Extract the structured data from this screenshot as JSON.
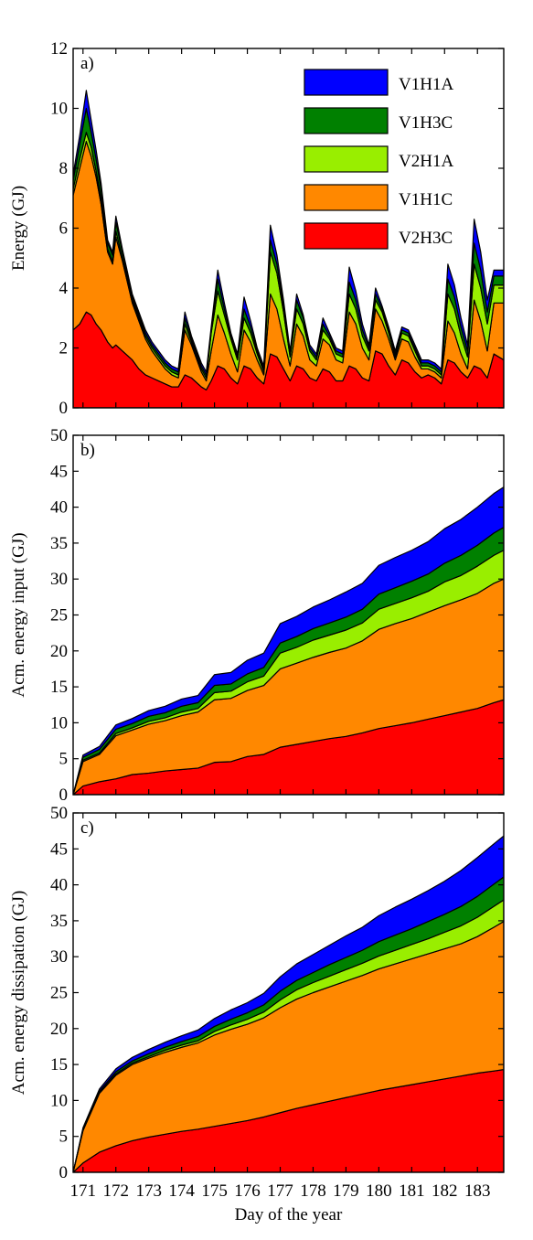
{
  "chart_data": [
    {
      "type": "area",
      "panel_label": "a)",
      "ylabel": "Energy (GJ)",
      "ylim": [
        0,
        12
      ],
      "yticks": [
        0,
        2,
        4,
        6,
        8,
        10,
        12
      ],
      "xlim": [
        170.7,
        183.8
      ],
      "x": [
        170.7,
        170.9,
        171.1,
        171.25,
        171.4,
        171.55,
        171.75,
        171.9,
        172.0,
        172.2,
        172.5,
        172.7,
        172.9,
        173.1,
        173.3,
        173.5,
        173.7,
        173.9,
        174.1,
        174.3,
        174.6,
        174.75,
        174.9,
        175.1,
        175.3,
        175.5,
        175.7,
        175.9,
        176.1,
        176.3,
        176.5,
        176.7,
        176.9,
        177.1,
        177.3,
        177.5,
        177.7,
        177.9,
        178.1,
        178.3,
        178.5,
        178.7,
        178.9,
        179.1,
        179.3,
        179.5,
        179.7,
        179.9,
        180.1,
        180.3,
        180.5,
        180.7,
        180.9,
        181.1,
        181.3,
        181.5,
        181.7,
        181.9,
        182.1,
        182.3,
        182.5,
        182.7,
        182.9,
        183.1,
        183.3,
        183.5,
        183.8
      ],
      "series": [
        {
          "name": "V2H3C",
          "color": "#ff0000",
          "values": [
            2.6,
            2.8,
            3.2,
            3.1,
            2.8,
            2.6,
            2.2,
            2.0,
            2.1,
            1.9,
            1.6,
            1.3,
            1.1,
            1.0,
            0.9,
            0.8,
            0.7,
            0.7,
            1.1,
            1.0,
            0.7,
            0.6,
            0.9,
            1.4,
            1.3,
            1.0,
            0.8,
            1.4,
            1.3,
            1.0,
            0.8,
            1.8,
            1.7,
            1.3,
            0.9,
            1.4,
            1.3,
            1.0,
            0.9,
            1.3,
            1.2,
            0.9,
            0.9,
            1.4,
            1.3,
            1.0,
            0.9,
            1.9,
            1.8,
            1.4,
            1.1,
            1.6,
            1.5,
            1.2,
            1.0,
            1.1,
            1.0,
            0.8,
            1.6,
            1.5,
            1.2,
            1.0,
            1.4,
            1.3,
            1.0,
            1.8,
            1.6
          ]
        },
        {
          "name": "V1H1C",
          "color": "#ff8800",
          "values": [
            4.5,
            5.2,
            5.7,
            5.3,
            4.9,
            4.2,
            3.0,
            2.8,
            3.6,
            3.0,
            1.9,
            1.6,
            1.2,
            0.9,
            0.7,
            0.5,
            0.4,
            0.3,
            1.5,
            1.1,
            0.5,
            0.3,
            1.0,
            1.7,
            1.2,
            0.8,
            0.4,
            1.2,
            0.9,
            0.6,
            0.3,
            2.0,
            1.6,
            1.0,
            0.5,
            1.4,
            1.1,
            0.6,
            0.5,
            1.0,
            0.9,
            0.7,
            0.6,
            1.8,
            1.5,
            1.0,
            0.7,
            1.4,
            1.1,
            0.9,
            0.5,
            0.7,
            0.7,
            0.5,
            0.3,
            0.2,
            0.2,
            0.2,
            1.3,
            1.0,
            0.6,
            0.3,
            2.2,
            1.6,
            0.9,
            1.7,
            1.9
          ]
        },
        {
          "name": "V2H1A",
          "color": "#99ee00",
          "values": [
            0.2,
            0.3,
            0.3,
            0.3,
            0.2,
            0.2,
            0.1,
            0.1,
            0.2,
            0.1,
            0.1,
            0.1,
            0.1,
            0.1,
            0.1,
            0.1,
            0.1,
            0.1,
            0.2,
            0.1,
            0.1,
            0.1,
            0.6,
            0.8,
            0.6,
            0.5,
            0.4,
            0.4,
            0.3,
            0.2,
            0.1,
            1.4,
            1.2,
            0.9,
            0.3,
            0.5,
            0.4,
            0.3,
            0.2,
            0.3,
            0.2,
            0.2,
            0.2,
            0.6,
            0.5,
            0.4,
            0.3,
            0.3,
            0.3,
            0.2,
            0.1,
            0.2,
            0.2,
            0.2,
            0.1,
            0.1,
            0.1,
            0.1,
            0.9,
            0.8,
            0.6,
            0.4,
            1.2,
            1.1,
            0.9,
            0.6,
            0.6
          ]
        },
        {
          "name": "V1H3C",
          "color": "#008000",
          "values": [
            0.3,
            0.5,
            0.8,
            0.5,
            0.4,
            0.3,
            0.2,
            0.2,
            0.3,
            0.2,
            0.1,
            0.1,
            0.1,
            0.1,
            0.1,
            0.1,
            0.1,
            0.1,
            0.2,
            0.1,
            0.1,
            0.1,
            0.1,
            0.4,
            0.2,
            0.1,
            0.1,
            0.3,
            0.2,
            0.1,
            0.1,
            0.4,
            0.3,
            0.2,
            0.1,
            0.3,
            0.2,
            0.1,
            0.1,
            0.2,
            0.1,
            0.1,
            0.1,
            0.4,
            0.3,
            0.2,
            0.1,
            0.2,
            0.1,
            0.1,
            0.1,
            0.1,
            0.1,
            0.1,
            0.1,
            0.1,
            0.1,
            0.1,
            0.5,
            0.4,
            0.3,
            0.2,
            0.7,
            0.6,
            0.4,
            0.3,
            0.3
          ]
        },
        {
          "name": "V1H1A",
          "color": "#0000ff",
          "values": [
            0.2,
            0.3,
            0.6,
            0.4,
            0.3,
            0.2,
            0.1,
            0.1,
            0.2,
            0.1,
            0.1,
            0.1,
            0.1,
            0.1,
            0.1,
            0.1,
            0.1,
            0.1,
            0.2,
            0.1,
            0.1,
            0.1,
            0.1,
            0.3,
            0.2,
            0.1,
            0.1,
            0.4,
            0.2,
            0.1,
            0.1,
            0.5,
            0.3,
            0.2,
            0.1,
            0.2,
            0.1,
            0.1,
            0.1,
            0.2,
            0.1,
            0.1,
            0.1,
            0.5,
            0.3,
            0.2,
            0.1,
            0.2,
            0.1,
            0.1,
            0.1,
            0.1,
            0.1,
            0.1,
            0.1,
            0.1,
            0.1,
            0.1,
            0.5,
            0.4,
            0.3,
            0.2,
            0.8,
            0.6,
            0.4,
            0.2,
            0.2
          ]
        }
      ]
    },
    {
      "type": "area",
      "panel_label": "b)",
      "ylabel": "Acm. energy input (GJ)",
      "ylim": [
        0,
        50
      ],
      "yticks": [
        0,
        5,
        10,
        15,
        20,
        25,
        30,
        35,
        40,
        45,
        50
      ],
      "xlim": [
        170.7,
        183.8
      ],
      "x": [
        170.7,
        171.0,
        171.5,
        172.0,
        172.5,
        173.0,
        173.5,
        174.0,
        174.5,
        175.0,
        175.5,
        176.0,
        176.5,
        177.0,
        177.5,
        178.0,
        178.5,
        179.0,
        179.5,
        180.0,
        180.5,
        181.0,
        181.5,
        182.0,
        182.5,
        183.0,
        183.5,
        183.8
      ],
      "series": [
        {
          "name": "V2H3C",
          "color": "#ff0000",
          "values": [
            0,
            1.2,
            1.8,
            2.2,
            2.8,
            3.0,
            3.3,
            3.5,
            3.7,
            4.5,
            4.6,
            5.3,
            5.6,
            6.6,
            7.0,
            7.4,
            7.8,
            8.1,
            8.6,
            9.2,
            9.6,
            10.0,
            10.5,
            11.0,
            11.5,
            12.0,
            12.8,
            13.2
          ]
        },
        {
          "name": "V1H1C",
          "color": "#ff8800",
          "values": [
            0,
            3.4,
            3.8,
            6.0,
            6.2,
            6.8,
            7.0,
            7.5,
            7.8,
            8.7,
            8.8,
            9.2,
            9.6,
            10.9,
            11.3,
            11.7,
            12.0,
            12.3,
            12.8,
            13.8,
            14.2,
            14.5,
            14.9,
            15.3,
            15.6,
            16.0,
            16.6,
            16.8
          ]
        },
        {
          "name": "V2H1A",
          "color": "#99ee00",
          "values": [
            0,
            0.2,
            0.2,
            0.3,
            0.3,
            0.4,
            0.4,
            0.5,
            0.5,
            1.0,
            1.0,
            1.2,
            1.3,
            2.2,
            2.2,
            2.4,
            2.4,
            2.5,
            2.5,
            2.8,
            2.8,
            2.9,
            2.9,
            3.3,
            3.4,
            3.8,
            3.9,
            4.0
          ]
        },
        {
          "name": "V1H3C",
          "color": "#008000",
          "values": [
            0,
            0.4,
            0.5,
            0.6,
            0.6,
            0.7,
            0.7,
            0.8,
            0.8,
            1.0,
            1.0,
            1.1,
            1.2,
            1.4,
            1.5,
            1.6,
            1.7,
            1.8,
            1.9,
            2.1,
            2.2,
            2.3,
            2.4,
            2.6,
            2.8,
            2.9,
            3.1,
            3.2
          ]
        },
        {
          "name": "V1H1A",
          "color": "#0000ff",
          "values": [
            0,
            0.3,
            0.4,
            0.6,
            0.7,
            0.8,
            0.9,
            1.0,
            1.0,
            1.5,
            1.6,
            1.9,
            2.0,
            2.7,
            2.8,
            3.0,
            3.2,
            3.5,
            3.6,
            4.0,
            4.2,
            4.3,
            4.5,
            4.8,
            5.0,
            5.3,
            5.5,
            5.6
          ]
        }
      ]
    },
    {
      "type": "area",
      "panel_label": "c)",
      "ylabel": "Acm. energy dissipation (GJ)",
      "ylim": [
        0,
        50
      ],
      "yticks": [
        0,
        5,
        10,
        15,
        20,
        25,
        30,
        35,
        40,
        45,
        50
      ],
      "xlabel": "Day of the year",
      "xticks": [
        171,
        172,
        173,
        174,
        175,
        176,
        177,
        178,
        179,
        180,
        181,
        182,
        183
      ],
      "xlim": [
        170.7,
        183.8
      ],
      "x": [
        170.7,
        171.0,
        171.5,
        172.0,
        172.5,
        173.0,
        173.5,
        174.0,
        174.5,
        175.0,
        175.5,
        176.0,
        176.5,
        177.0,
        177.5,
        178.0,
        178.5,
        179.0,
        179.5,
        180.0,
        180.5,
        181.0,
        181.5,
        182.0,
        182.5,
        183.0,
        183.5,
        183.8
      ],
      "series": [
        {
          "name": "V2H3C",
          "color": "#ff0000",
          "values": [
            0,
            1.3,
            2.8,
            3.7,
            4.4,
            4.9,
            5.3,
            5.7,
            6.0,
            6.4,
            6.8,
            7.2,
            7.7,
            8.3,
            8.9,
            9.4,
            9.9,
            10.4,
            10.9,
            11.4,
            11.8,
            12.2,
            12.6,
            13.0,
            13.4,
            13.8,
            14.1,
            14.3
          ]
        },
        {
          "name": "V1H1C",
          "color": "#ff8800",
          "values": [
            0,
            4.5,
            8.2,
            9.8,
            10.6,
            11.0,
            11.4,
            11.7,
            12.0,
            12.7,
            13.1,
            13.4,
            13.8,
            14.6,
            15.2,
            15.6,
            15.9,
            16.2,
            16.5,
            16.9,
            17.2,
            17.5,
            17.8,
            18.1,
            18.4,
            19.0,
            20.0,
            20.6
          ]
        },
        {
          "name": "V2H1A",
          "color": "#99ee00",
          "values": [
            0,
            0.1,
            0.1,
            0.2,
            0.2,
            0.2,
            0.3,
            0.3,
            0.3,
            0.5,
            0.6,
            0.7,
            0.8,
            1.1,
            1.3,
            1.4,
            1.5,
            1.6,
            1.7,
            1.8,
            1.9,
            2.0,
            2.1,
            2.3,
            2.5,
            2.7,
            2.9,
            3.0
          ]
        },
        {
          "name": "V1H3C",
          "color": "#008000",
          "values": [
            0,
            0.1,
            0.2,
            0.3,
            0.3,
            0.4,
            0.4,
            0.5,
            0.6,
            0.7,
            0.8,
            0.9,
            1.0,
            1.2,
            1.3,
            1.4,
            1.6,
            1.7,
            1.8,
            2.0,
            2.1,
            2.2,
            2.4,
            2.5,
            2.7,
            2.9,
            3.1,
            3.2
          ]
        },
        {
          "name": "V1H1A",
          "color": "#0000ff",
          "values": [
            0,
            0.2,
            0.3,
            0.4,
            0.5,
            0.6,
            0.7,
            0.8,
            0.9,
            1.1,
            1.3,
            1.4,
            1.6,
            2.0,
            2.3,
            2.5,
            2.7,
            3.0,
            3.2,
            3.6,
            3.9,
            4.1,
            4.3,
            4.6,
            5.0,
            5.4,
            5.6,
            5.7
          ]
        }
      ]
    }
  ],
  "legend": {
    "placement": "top-right of panel a)",
    "entries": [
      {
        "label": "V1H1A",
        "color": "#0000ff"
      },
      {
        "label": "V1H3C",
        "color": "#008000"
      },
      {
        "label": "V2H1A",
        "color": "#99ee00"
      },
      {
        "label": "V1H1C",
        "color": "#ff8800"
      },
      {
        "label": "V2H3C",
        "color": "#ff0000"
      }
    ]
  }
}
